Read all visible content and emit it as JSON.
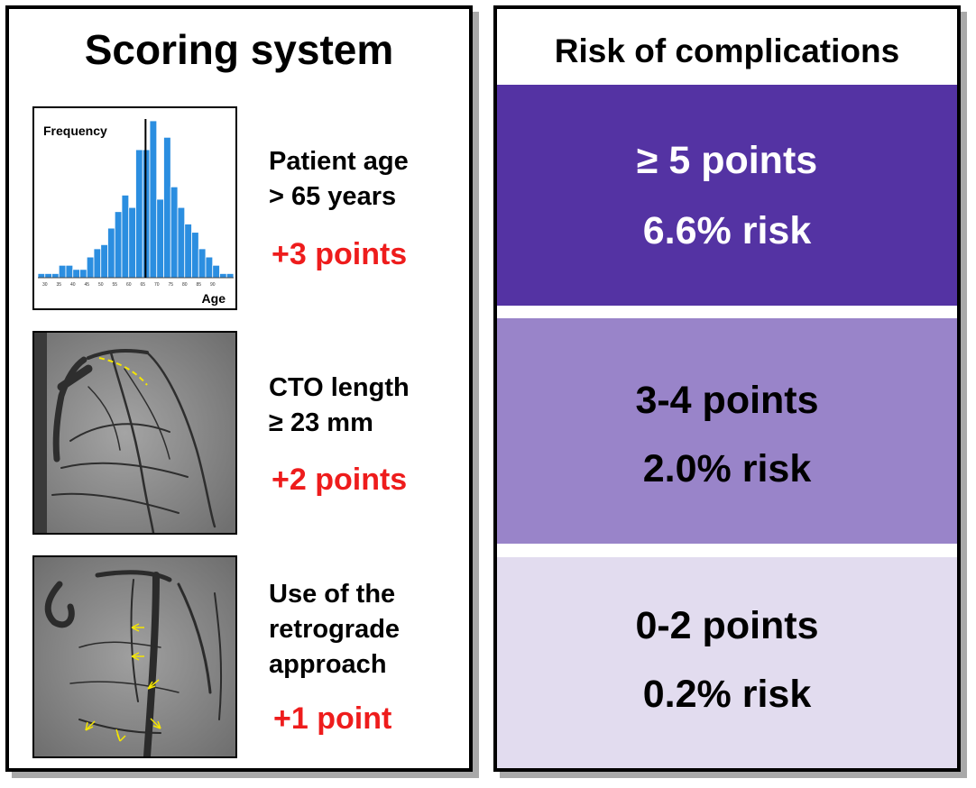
{
  "scoring": {
    "title": "Scoring system",
    "criteria": [
      {
        "label_line1": "Patient age",
        "label_line2": "> 65 years",
        "points": "+3 points"
      },
      {
        "label_line1": "CTO length",
        "label_line2": "≥ 23 mm",
        "points": "+2 points"
      },
      {
        "label_line1": "Use of the",
        "label_line2": "retrograde",
        "label_line3": "approach",
        "points": "+1 point"
      }
    ]
  },
  "histogram": {
    "ylabel": "Frequency",
    "xlabel": "Age",
    "ticks": [
      "30",
      "35",
      "40",
      "45",
      "50",
      "55",
      "60",
      "65",
      "70",
      "75",
      "80",
      "85",
      "90"
    ],
    "counts": [
      1,
      1,
      1,
      3,
      3,
      2,
      2,
      5,
      7,
      8,
      12,
      16,
      20,
      17,
      31,
      31,
      38,
      19,
      34,
      22,
      17,
      13,
      11,
      7,
      5,
      3,
      1,
      1
    ],
    "marker_age": 66,
    "bar_color": "#2b8ee0"
  },
  "risk": {
    "title": "Risk of complications",
    "tiers": [
      {
        "points": "≥ 5 points",
        "risk": "6.6% risk",
        "bg": "#5433a3",
        "fg": "#ffffff"
      },
      {
        "points": "3-4 points",
        "risk": "2.0% risk",
        "bg": "#9984c9",
        "fg": "#000000"
      },
      {
        "points": "0-2 points",
        "risk": "0.2% risk",
        "bg": "#e2dcef",
        "fg": "#000000"
      }
    ]
  },
  "colors": {
    "points_red": "#ee1c1c",
    "arrow_yellow": "#f5e600"
  }
}
